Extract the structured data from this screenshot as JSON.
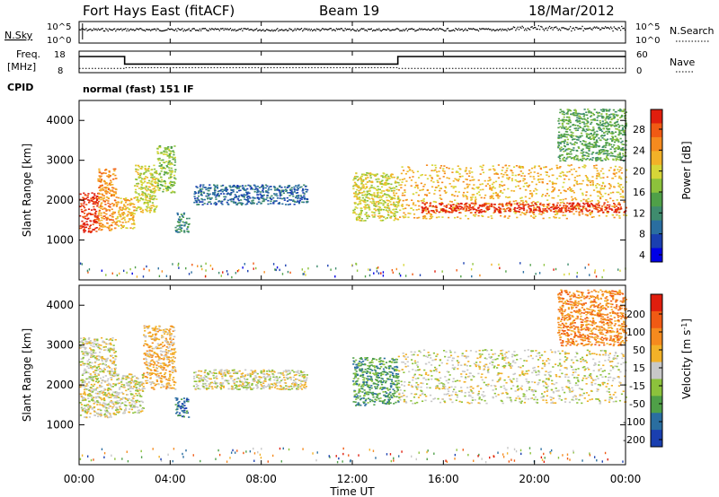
{
  "header": {
    "station": "Fort Hays East (fitACF)",
    "beam": "Beam 19",
    "date": "18/Mar/2012"
  },
  "mode_label": "normal (fast) 151 IF",
  "colors": {
    "power": [
      "#0000e6",
      "#1a3fb0",
      "#2a6ea0",
      "#3f8c6e",
      "#4fa048",
      "#8cc23c",
      "#d6d638",
      "#f2b128",
      "#f58a1e",
      "#f05a14",
      "#e01e0e"
    ],
    "velocity": [
      "#1a3fb0",
      "#2a6ea0",
      "#4fa048",
      "#8cc23c",
      "#c8c8c8",
      "#f2b128",
      "#f58a1e",
      "#f05a14",
      "#e01e0e"
    ]
  },
  "chart_data": [
    {
      "type": "line",
      "name": "noise-panel",
      "left_axis": {
        "label": "N.Sky",
        "ticks": [
          "10^5",
          "10^0"
        ]
      },
      "right_axis": {
        "label": "N.Search",
        "ticks": [
          "10^5",
          "10^0"
        ]
      },
      "x": {
        "ticks": [
          "00:00",
          "04:00",
          "08:00",
          "12:00",
          "16:00",
          "20:00",
          "00:00"
        ]
      }
    },
    {
      "type": "line",
      "name": "freq-panel",
      "left_axis": {
        "label_lines": [
          "Freq.",
          "[MHz]"
        ],
        "ticks": [
          18,
          8
        ],
        "ylim": [
          8,
          18
        ]
      },
      "right_axis": {
        "label": "Nave",
        "ticks": [
          60,
          0
        ],
        "ylim": [
          0,
          60
        ]
      },
      "cpid_label": "CPID",
      "freq_steps": [
        [
          0,
          15.5
        ],
        [
          2,
          15.5
        ],
        [
          2,
          12
        ],
        [
          14,
          12
        ],
        [
          14,
          15.5
        ],
        [
          24,
          15.5
        ]
      ],
      "nave_steps": [
        [
          0,
          12
        ],
        [
          2,
          12
        ],
        [
          2,
          14
        ],
        [
          14,
          14
        ],
        [
          14,
          12
        ],
        [
          24,
          12
        ]
      ]
    },
    {
      "type": "heatmap",
      "name": "power-panel",
      "ylabel": "Slant Range [km]",
      "yticks": [
        1000,
        2000,
        3000,
        4000
      ],
      "ylim": [
        0,
        4500
      ],
      "xlim": [
        0,
        24
      ],
      "colorbar": {
        "label": "Power [dB]",
        "ticks": [
          "4",
          "8",
          "12",
          "16",
          "20",
          "24",
          "28"
        ]
      },
      "bands": [
        {
          "x0": 0.0,
          "x1": 0.8,
          "y0": 1200,
          "y1": 2200,
          "level": 10
        },
        {
          "x0": 0.8,
          "x1": 1.6,
          "y0": 1250,
          "y1": 2800,
          "level": 8
        },
        {
          "x0": 1.6,
          "x1": 2.4,
          "y0": 1300,
          "y1": 2100,
          "level": 7
        },
        {
          "x0": 2.4,
          "x1": 3.4,
          "y0": 1700,
          "y1": 2900,
          "level": 6
        },
        {
          "x0": 3.4,
          "x1": 4.2,
          "y0": 2200,
          "y1": 3400,
          "level": 5
        },
        {
          "x0": 4.2,
          "x1": 4.8,
          "y0": 1200,
          "y1": 1700,
          "level": 3
        },
        {
          "x0": 5.0,
          "x1": 10.0,
          "y0": 1900,
          "y1": 2400,
          "level": 2
        },
        {
          "x0": 12.0,
          "x1": 14.0,
          "y0": 1500,
          "y1": 2700,
          "level": 6
        },
        {
          "x0": 14.0,
          "x1": 24.0,
          "y0": 1550,
          "y1": 2900,
          "level": 7
        },
        {
          "x0": 15.0,
          "x1": 24.0,
          "y0": 1700,
          "y1": 1950,
          "level": 10
        },
        {
          "x0": 21.0,
          "x1": 24.0,
          "y0": 3000,
          "y1": 4300,
          "level": 4
        }
      ]
    },
    {
      "type": "heatmap",
      "name": "velocity-panel",
      "ylabel": "Slant Range [km]",
      "yticks": [
        1000,
        2000,
        3000,
        4000
      ],
      "ylim": [
        0,
        4500
      ],
      "xlim": [
        0,
        24
      ],
      "xlabel": "Time UT",
      "colorbar": {
        "label": "Velocity [m s^-1]",
        "ticks": [
          "200",
          "100",
          "50",
          "15",
          "-15",
          "-50",
          "-100",
          "-200"
        ]
      },
      "bands": [
        {
          "x0": 0.0,
          "x1": 1.6,
          "y0": 1200,
          "y1": 3200,
          "level": 4
        },
        {
          "x0": 1.6,
          "x1": 2.8,
          "y0": 1300,
          "y1": 2300,
          "level": 4
        },
        {
          "x0": 2.8,
          "x1": 4.2,
          "y0": 1900,
          "y1": 3500,
          "level": 5
        },
        {
          "x0": 4.2,
          "x1": 4.8,
          "y0": 1200,
          "y1": 1700,
          "level": 1
        },
        {
          "x0": 5.0,
          "x1": 10.0,
          "y0": 1900,
          "y1": 2400,
          "level": 4
        },
        {
          "x0": 12.0,
          "x1": 14.0,
          "y0": 1500,
          "y1": 2700,
          "level": 2
        },
        {
          "x0": 14.0,
          "x1": 24.0,
          "y0": 1550,
          "y1": 2900,
          "level": 4
        },
        {
          "x0": 21.0,
          "x1": 24.0,
          "y0": 3000,
          "y1": 4400,
          "level": 6
        }
      ]
    }
  ]
}
